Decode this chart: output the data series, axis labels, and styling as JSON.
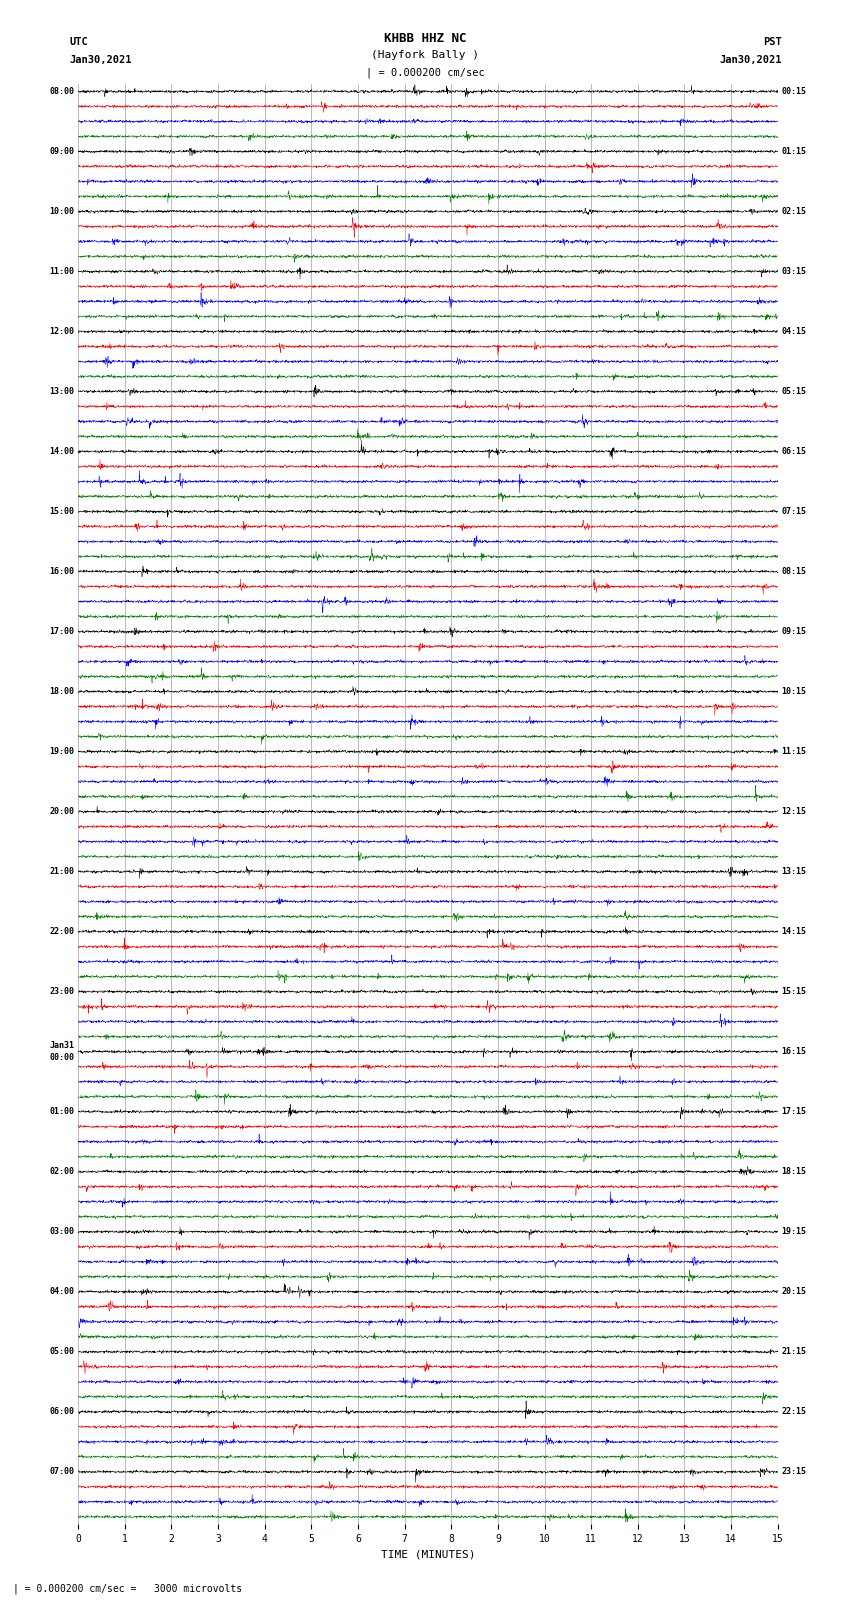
{
  "title_line1": "KHBB HHZ NC",
  "title_line2": "(Hayfork Bally )",
  "title_line3": "| = 0.000200 cm/sec",
  "label_utc": "UTC",
  "label_pst": "PST",
  "label_date_left": "Jan30,2021",
  "label_date_right": "Jan30,2021",
  "xlabel": "TIME (MINUTES)",
  "footer": "| = 0.000200 cm/sec =   3000 microvolts",
  "xlim": [
    0,
    15
  ],
  "xticks": [
    0,
    1,
    2,
    3,
    4,
    5,
    6,
    7,
    8,
    9,
    10,
    11,
    12,
    13,
    14,
    15
  ],
  "bg_color": "#ffffff",
  "trace_colors": [
    "black",
    "red",
    "blue",
    "green"
  ],
  "left_times_utc": [
    "08:00",
    "",
    "",
    "",
    "09:00",
    "",
    "",
    "",
    "10:00",
    "",
    "",
    "",
    "11:00",
    "",
    "",
    "",
    "12:00",
    "",
    "",
    "",
    "13:00",
    "",
    "",
    "",
    "14:00",
    "",
    "",
    "",
    "15:00",
    "",
    "",
    "",
    "16:00",
    "",
    "",
    "",
    "17:00",
    "",
    "",
    "",
    "18:00",
    "",
    "",
    "",
    "19:00",
    "",
    "",
    "",
    "20:00",
    "",
    "",
    "",
    "21:00",
    "",
    "",
    "",
    "22:00",
    "",
    "",
    "",
    "23:00",
    "",
    "",
    "",
    "Jan31\n00:00",
    "",
    "",
    "",
    "01:00",
    "",
    "",
    "",
    "02:00",
    "",
    "",
    "",
    "03:00",
    "",
    "",
    "",
    "04:00",
    "",
    "",
    "",
    "05:00",
    "",
    "",
    "",
    "06:00",
    "",
    "",
    "",
    "07:00",
    "",
    "",
    ""
  ],
  "right_times_pst": [
    "00:15",
    "",
    "",
    "",
    "01:15",
    "",
    "",
    "",
    "02:15",
    "",
    "",
    "",
    "03:15",
    "",
    "",
    "",
    "04:15",
    "",
    "",
    "",
    "05:15",
    "",
    "",
    "",
    "06:15",
    "",
    "",
    "",
    "07:15",
    "",
    "",
    "",
    "08:15",
    "",
    "",
    "",
    "09:15",
    "",
    "",
    "",
    "10:15",
    "",
    "",
    "",
    "11:15",
    "",
    "",
    "",
    "12:15",
    "",
    "",
    "",
    "13:15",
    "",
    "",
    "",
    "14:15",
    "",
    "",
    "",
    "15:15",
    "",
    "",
    "",
    "16:15",
    "",
    "",
    "",
    "17:15",
    "",
    "",
    "",
    "18:15",
    "",
    "",
    "",
    "19:15",
    "",
    "",
    "",
    "20:15",
    "",
    "",
    "",
    "21:15",
    "",
    "",
    "",
    "22:15",
    "",
    "",
    "",
    "23:15",
    "",
    "",
    ""
  ],
  "n_rows": 96,
  "n_hours": 24,
  "traces_per_hour": 4,
  "amplitude": 0.3,
  "noise_seed": 42,
  "figsize": [
    8.5,
    16.13
  ],
  "dpi": 100,
  "vline_x_every": 1,
  "vline_color": "#888888",
  "n_pts": 2700
}
